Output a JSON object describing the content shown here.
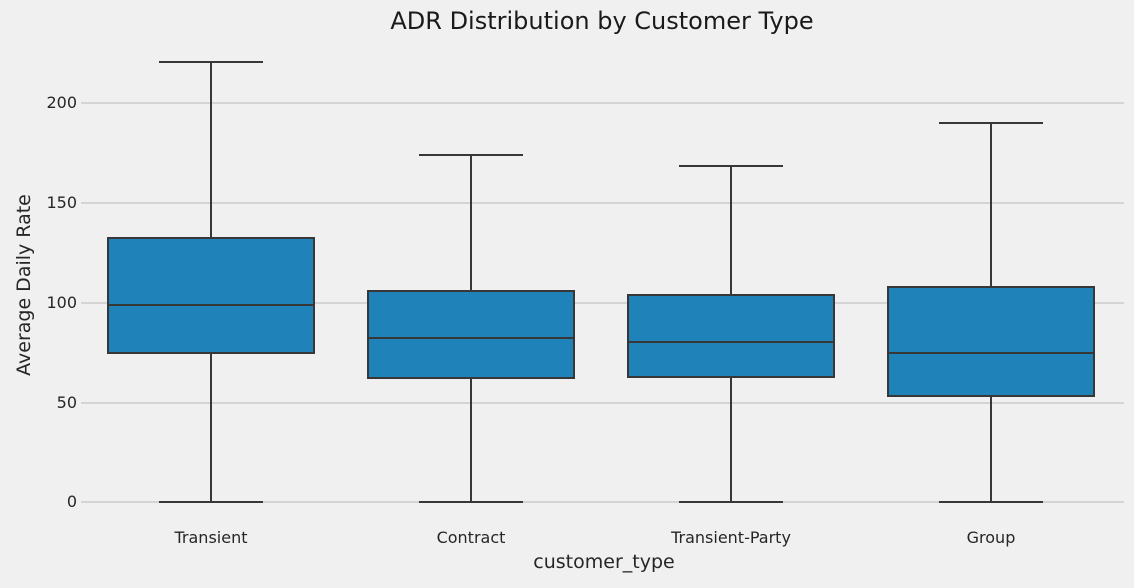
{
  "chart_data": {
    "type": "box",
    "title": "ADR Distribution by Customer Type",
    "xlabel": "customer_type",
    "ylabel": "Average Daily Rate",
    "categories": [
      "Transient",
      "Contract",
      "Transient-Party",
      "Group"
    ],
    "yticks": [
      0,
      50,
      100,
      150,
      200
    ],
    "ylim": [
      -11,
      225
    ],
    "grid": true,
    "legend": false,
    "orientation": "vertical",
    "show_fliers": false,
    "series": [
      {
        "label": "Transient",
        "whislo": 0,
        "q1": 74.5,
        "med": 99,
        "q3": 133,
        "whishi": 220.5
      },
      {
        "label": "Contract",
        "whislo": 0,
        "q1": 62,
        "med": 82.5,
        "q3": 106.5,
        "whishi": 174
      },
      {
        "label": "Transient-Party",
        "whislo": 0,
        "q1": 62.5,
        "med": 80.5,
        "q3": 104.5,
        "whishi": 168.5
      },
      {
        "label": "Group",
        "whislo": 0,
        "q1": 53,
        "med": 75,
        "q3": 108.5,
        "whishi": 190
      }
    ],
    "colors": {
      "box_fill": "#1f82b9",
      "line": "#373737",
      "grid": "#d4d4d4",
      "background": "#f0f0f0",
      "text": "#262626"
    }
  }
}
